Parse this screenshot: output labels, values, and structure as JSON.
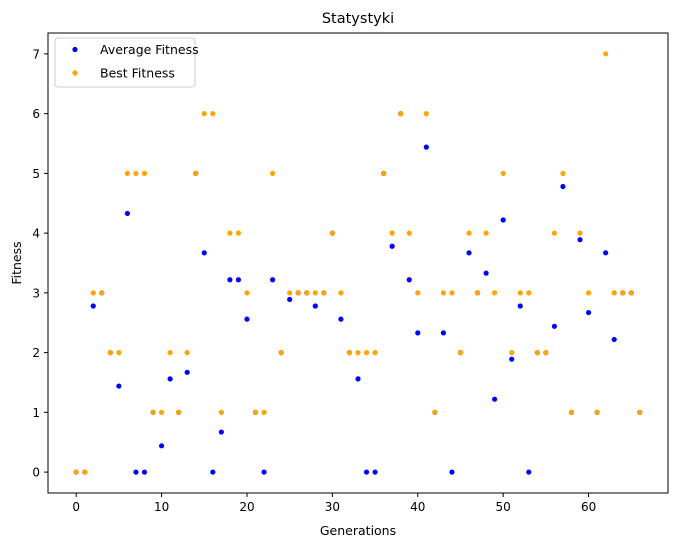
{
  "chart_data": {
    "type": "scatter",
    "title": "Statystyki",
    "xlabel": "Generations",
    "ylabel": "Fitness",
    "xlim": [
      -3.3,
      69.3
    ],
    "ylim": [
      -0.35,
      7.35
    ],
    "xticks": [
      0,
      10,
      20,
      30,
      40,
      50,
      60
    ],
    "yticks": [
      0,
      1,
      2,
      3,
      4,
      5,
      6,
      7
    ],
    "grid": false,
    "legend_position": "top-left",
    "series": [
      {
        "name": "Average Fitness",
        "color": "#0000ff",
        "x": [
          0,
          1,
          2,
          3,
          4,
          5,
          6,
          7,
          8,
          9,
          10,
          11,
          12,
          13,
          14,
          15,
          16,
          17,
          18,
          19,
          20,
          21,
          22,
          23,
          24,
          25,
          26,
          27,
          28,
          29,
          30,
          31,
          32,
          33,
          34,
          35,
          36,
          37,
          38,
          39,
          40,
          41,
          42,
          43,
          44,
          45,
          46,
          47,
          48,
          49,
          50,
          51,
          52,
          53,
          54,
          55,
          56,
          57,
          58,
          59,
          60,
          61,
          62,
          63,
          64,
          65,
          66
        ],
        "y": [
          0,
          0,
          2.78,
          3,
          2,
          1.44,
          4.33,
          0,
          0,
          1,
          0.44,
          1.56,
          1,
          1.67,
          5,
          3.67,
          0,
          0.67,
          3.22,
          3.22,
          2.56,
          1,
          0,
          3.22,
          2,
          2.89,
          3,
          3,
          2.78,
          3,
          4,
          2.56,
          2,
          1.56,
          0,
          0,
          5,
          3.78,
          6,
          3.22,
          2.33,
          5.44,
          1,
          2.33,
          0,
          2,
          3.67,
          3,
          3.33,
          1.22,
          4.22,
          1.89,
          2.78,
          0,
          2,
          2,
          2.44,
          4.78,
          1,
          3.89,
          2.67,
          1,
          3.67,
          2.22,
          3,
          3,
          1
        ]
      },
      {
        "name": "Best Fitness",
        "color": "#ffa500",
        "x": [
          0,
          1,
          2,
          3,
          4,
          5,
          6,
          7,
          8,
          9,
          10,
          11,
          12,
          13,
          14,
          15,
          16,
          17,
          18,
          19,
          20,
          21,
          22,
          23,
          24,
          25,
          26,
          27,
          28,
          29,
          30,
          31,
          32,
          33,
          34,
          35,
          36,
          37,
          38,
          39,
          40,
          41,
          42,
          43,
          44,
          45,
          46,
          47,
          48,
          49,
          50,
          51,
          52,
          53,
          54,
          55,
          56,
          57,
          58,
          59,
          60,
          61,
          62,
          63,
          64,
          65,
          66
        ],
        "y": [
          0,
          0,
          3,
          3,
          2,
          2,
          5,
          5,
          5,
          1,
          1,
          2,
          1,
          2,
          5,
          6,
          6,
          1,
          4,
          4,
          3,
          1,
          1,
          5,
          2,
          3,
          3,
          3,
          3,
          3,
          4,
          3,
          2,
          2,
          2,
          2,
          5,
          4,
          6,
          4,
          3,
          6,
          1,
          3,
          3,
          2,
          4,
          3,
          4,
          3,
          5,
          2,
          3,
          3,
          2,
          2,
          4,
          5,
          1,
          4,
          3,
          1,
          7,
          3,
          3,
          3,
          1
        ]
      }
    ]
  }
}
